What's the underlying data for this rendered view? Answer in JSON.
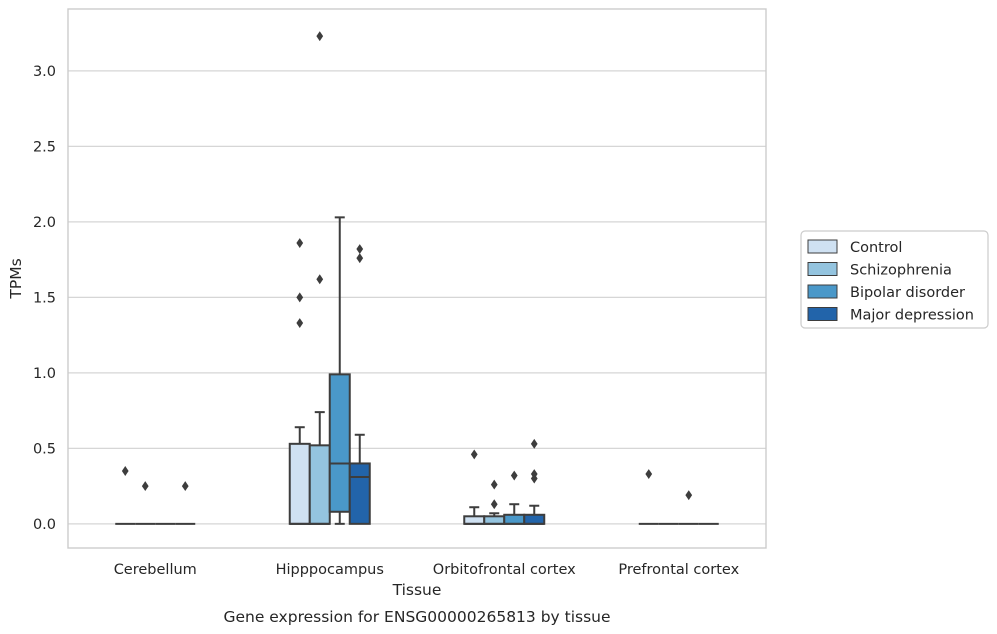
{
  "chart_data": {
    "type": "box",
    "title": "",
    "xlabel": "Tissue",
    "ylabel": "TPMs",
    "caption": "Gene expression for ENSG00000265813 by tissue",
    "categories": [
      "Cerebellum",
      "Hipppocampus",
      "Orbitofrontal cortex",
      "Prefrontal cortex"
    ],
    "ylim": [
      -0.16,
      3.41
    ],
    "yticks": [
      0.0,
      0.5,
      1.0,
      1.5,
      2.0,
      2.5,
      3.0
    ],
    "ytick_labels": [
      "0.0",
      "0.5",
      "1.0",
      "1.5",
      "2.0",
      "2.5",
      "3.0"
    ],
    "grid": true,
    "legend_position": "right",
    "series": [
      {
        "name": "Control",
        "color": "#cfe1f2",
        "boxes": [
          {
            "q1": 0.0,
            "median": 0.0,
            "q3": 0.0,
            "whislo": 0.0,
            "whishi": 0.0,
            "fliers": [
              0.35
            ]
          },
          {
            "q1": 0.0,
            "median": 0.0,
            "q3": 0.53,
            "whislo": 0.0,
            "whishi": 0.64,
            "fliers": [
              1.86,
              1.5,
              1.33
            ]
          },
          {
            "q1": 0.0,
            "median": 0.0,
            "q3": 0.05,
            "whislo": 0.0,
            "whishi": 0.11,
            "fliers": [
              0.46
            ]
          },
          {
            "q1": 0.0,
            "median": 0.0,
            "q3": 0.0,
            "whislo": 0.0,
            "whishi": 0.0,
            "fliers": [
              0.33
            ]
          }
        ]
      },
      {
        "name": "Schizophrenia",
        "color": "#94c4df",
        "boxes": [
          {
            "q1": 0.0,
            "median": 0.0,
            "q3": 0.0,
            "whislo": 0.0,
            "whishi": 0.0,
            "fliers": [
              0.25
            ]
          },
          {
            "q1": 0.0,
            "median": 0.0,
            "q3": 0.52,
            "whislo": 0.0,
            "whishi": 0.74,
            "fliers": [
              3.23,
              1.62
            ]
          },
          {
            "q1": 0.0,
            "median": 0.0,
            "q3": 0.05,
            "whislo": 0.0,
            "whishi": 0.07,
            "fliers": [
              0.26,
              0.13
            ]
          },
          {
            "q1": 0.0,
            "median": 0.0,
            "q3": 0.0,
            "whislo": 0.0,
            "whishi": 0.0,
            "fliers": []
          }
        ]
      },
      {
        "name": "Bipolar disorder",
        "color": "#4a98c9",
        "boxes": [
          {
            "q1": 0.0,
            "median": 0.0,
            "q3": 0.0,
            "whislo": 0.0,
            "whishi": 0.0,
            "fliers": []
          },
          {
            "q1": 0.08,
            "median": 0.4,
            "q3": 0.99,
            "whislo": 0.0,
            "whishi": 2.03,
            "fliers": []
          },
          {
            "q1": 0.0,
            "median": 0.0,
            "q3": 0.06,
            "whislo": 0.0,
            "whishi": 0.13,
            "fliers": [
              0.32
            ]
          },
          {
            "q1": 0.0,
            "median": 0.0,
            "q3": 0.0,
            "whislo": 0.0,
            "whishi": 0.0,
            "fliers": [
              0.19
            ]
          }
        ]
      },
      {
        "name": "Major depression",
        "color": "#2264aa",
        "boxes": [
          {
            "q1": 0.0,
            "median": 0.0,
            "q3": 0.0,
            "whislo": 0.0,
            "whishi": 0.0,
            "fliers": [
              0.25
            ]
          },
          {
            "q1": 0.0,
            "median": 0.31,
            "q3": 0.4,
            "whislo": 0.0,
            "whishi": 0.59,
            "fliers": [
              1.82,
              1.76
            ]
          },
          {
            "q1": 0.0,
            "median": 0.0,
            "q3": 0.06,
            "whislo": 0.0,
            "whishi": 0.12,
            "fliers": [
              0.53,
              0.33,
              0.3
            ]
          },
          {
            "q1": 0.0,
            "median": 0.0,
            "q3": 0.0,
            "whislo": 0.0,
            "whishi": 0.0,
            "fliers": []
          }
        ]
      }
    ]
  }
}
